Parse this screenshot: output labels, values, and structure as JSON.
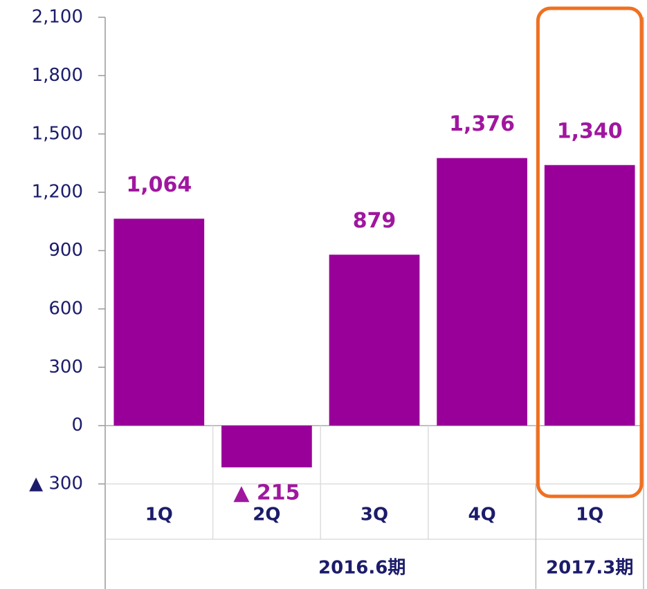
{
  "chart_data": {
    "type": "bar",
    "categories": [
      "1Q",
      "2Q",
      "3Q",
      "4Q",
      "1Q"
    ],
    "values": [
      1064,
      -215,
      879,
      1376,
      1340
    ],
    "value_labels": [
      "1,064",
      "▲ 215",
      "879",
      "1,376",
      "1,340"
    ],
    "color": "#990099",
    "groups": [
      {
        "label": "2016.6期",
        "count": 4
      },
      {
        "label": "2017.3期",
        "count": 1
      }
    ],
    "ylim": [
      -300,
      2100
    ],
    "yticks": [
      {
        "value": -300,
        "label": "▲ 300"
      },
      0,
      300,
      600,
      900,
      {
        "value": 1200,
        "label": "1,200"
      },
      {
        "value": 1500,
        "label": "1,500"
      },
      {
        "value": 1800,
        "label": "1,800"
      },
      {
        "value": 2100,
        "label": "2,100"
      }
    ],
    "grid": false
  }
}
